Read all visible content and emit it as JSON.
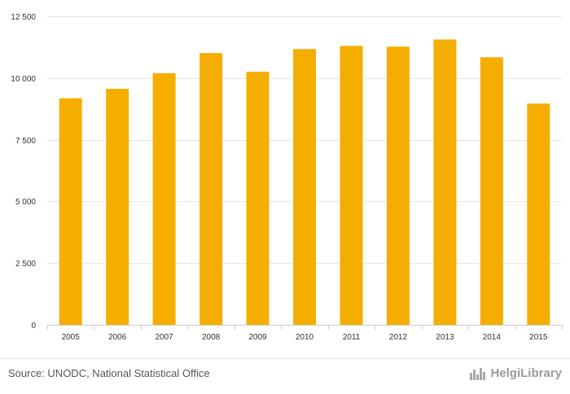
{
  "chart_data": {
    "type": "bar",
    "categories": [
      "2005",
      "2006",
      "2007",
      "2008",
      "2009",
      "2010",
      "2011",
      "2012",
      "2013",
      "2014",
      "2015"
    ],
    "values": [
      9180,
      9560,
      10190,
      11010,
      10250,
      11170,
      11300,
      11270,
      11560,
      10840,
      8960
    ],
    "ylim": [
      0,
      12500
    ],
    "yticks": [
      0,
      2500,
      5000,
      7500,
      10000,
      12500
    ],
    "ytick_labels": [
      "0",
      "2 500",
      "5 000",
      "7 500",
      "10 000",
      "12 500"
    ],
    "bar_color": "#f5ae00",
    "grid": true,
    "title": "",
    "xlabel": "",
    "ylabel": ""
  },
  "footer": {
    "source": "Source: UNODC, National Statistical Office",
    "brand": "HelgiLibrary"
  },
  "colors": {
    "grid": "#e6e6e6",
    "axis": "#cccccc",
    "text": "#333333",
    "brand": "#9a9a9a"
  },
  "icons": {
    "brand": "city-skyline-icon"
  }
}
